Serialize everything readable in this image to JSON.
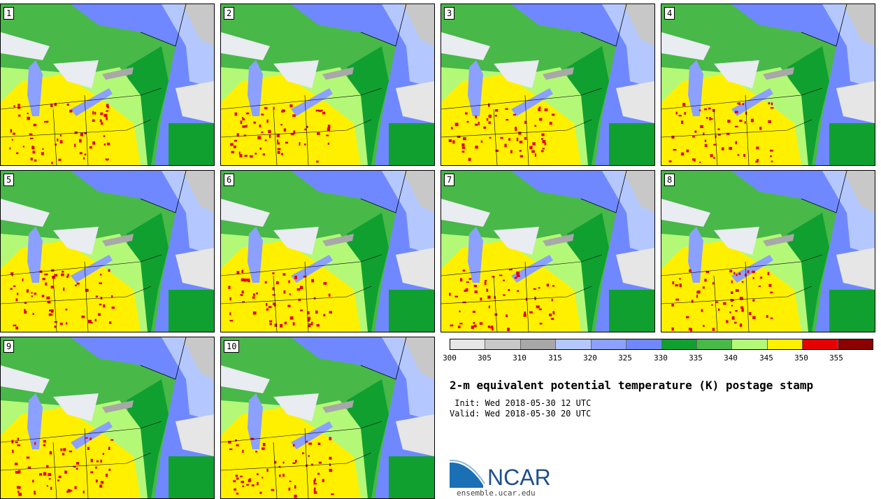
{
  "panels": [
    {
      "label": "1"
    },
    {
      "label": "2"
    },
    {
      "label": "3"
    },
    {
      "label": "4"
    },
    {
      "label": "5"
    },
    {
      "label": "6"
    },
    {
      "label": "7"
    },
    {
      "label": "8"
    },
    {
      "label": "9"
    },
    {
      "label": "10"
    }
  ],
  "colorbar": {
    "colors": [
      "#e6e6e6",
      "#c8c8c8",
      "#a8a8a8",
      "#b4c8ff",
      "#8ca0ff",
      "#7088ff",
      "#10a030",
      "#48b848",
      "#b4f878",
      "#fff000",
      "#e60000",
      "#8c0000"
    ],
    "ticks": [
      "300",
      "305",
      "310",
      "315",
      "320",
      "325",
      "330",
      "335",
      "340",
      "345",
      "350",
      "355"
    ]
  },
  "title": "2-m equivalent potential temperature (K) postage stamp",
  "init_text": " Init: Wed 2018-05-30 12 UTC",
  "valid_text": "Valid: Wed 2018-05-30 20 UTC",
  "logo": {
    "text": "NCAR",
    "url": "ensemble.ucar.edu",
    "colors": {
      "blue": "#1a6fb5",
      "text": "#1f4f8f"
    }
  },
  "map_colors": {
    "sea": "#c8c8c8",
    "north": "#7088ff",
    "green": "#10a030",
    "mid": "#48b848",
    "lightgreen": "#b4f878",
    "yellow": "#fff000",
    "red": "#e60000",
    "lake": "#e9ecf0",
    "michigan": "#8ca0ff",
    "erie": "#8ca0ff",
    "grey": "#a8a8a8"
  }
}
